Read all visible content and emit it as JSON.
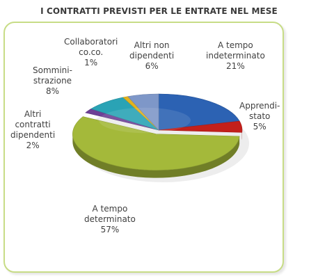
{
  "title": "I CONTRATTI PREVISTI PER LE ENTRATE NEL MESE",
  "chart_data": {
    "type": "pie",
    "title": "I CONTRATTI PREVISTI PER LE ENTRATE NEL MESE",
    "three_d": true,
    "slices": [
      {
        "label_lines": [
          "A tempo",
          "indeterminato"
        ],
        "label": "A tempo indeterminato",
        "value": 21,
        "value_label": "21%",
        "color": "#2c62b3",
        "exploded": false
      },
      {
        "label_lines": [
          "Apprendi-",
          "stato"
        ],
        "label": "Apprendistato",
        "value": 5,
        "value_label": "5%",
        "color": "#c3201b",
        "exploded": false
      },
      {
        "label_lines": [
          "A tempo",
          "determinato"
        ],
        "label": "A tempo determinato",
        "value": 57,
        "value_label": "57%",
        "color": "#a4b93a",
        "exploded": true
      },
      {
        "label_lines": [
          "Altri",
          "contratti",
          "dipendenti"
        ],
        "label": "Altri contratti dipendenti",
        "value": 2,
        "value_label": "2%",
        "color": "#6d4096",
        "exploded": false
      },
      {
        "label_lines": [
          "Sommini-",
          "strazione"
        ],
        "label": "Somministrazione",
        "value": 8,
        "value_label": "8%",
        "color": "#2aa3b5",
        "exploded": false
      },
      {
        "label_lines": [
          "Collaboratori",
          "co.co."
        ],
        "label": "Collaboratori co.co.",
        "value": 1,
        "value_label": "1%",
        "color": "#e3b21d",
        "exploded": false
      },
      {
        "label_lines": [
          "Altri non",
          "dipendenti"
        ],
        "label": "Altri non dipendenti",
        "value": 6,
        "value_label": "6%",
        "color": "#7e97c8",
        "exploded": false
      }
    ]
  }
}
